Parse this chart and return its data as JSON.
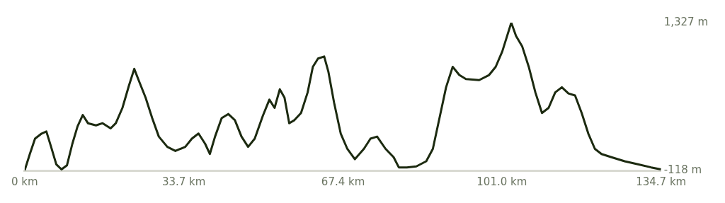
{
  "chart_data": {
    "type": "line",
    "grid": false,
    "legend": false,
    "marker": "none",
    "line_style": "solid",
    "xlim": [
      0,
      134.7
    ],
    "xticks": [
      {
        "value": 0,
        "label": "0 km"
      },
      {
        "value": 33.7,
        "label": "33.7 km"
      },
      {
        "value": 67.4,
        "label": "67.4 km"
      },
      {
        "value": 101.0,
        "label": "101.0 km"
      },
      {
        "value": 134.7,
        "label": "134.7 km"
      }
    ],
    "ylim": [
      -118,
      1327
    ],
    "yticks": [
      {
        "value": -118,
        "label": "-118 m"
      },
      {
        "value": 1327,
        "label": "1,327 m"
      }
    ],
    "x": [
      0,
      1.1,
      2.2,
      3.6,
      4.6,
      5.6,
      6.7,
      7.8,
      8.95,
      10.1,
      11.2,
      12.3,
      13.4,
      15.1,
      16.5,
      18.2,
      19.3,
      20.7,
      22.1,
      23.2,
      24.3,
      25.6,
      27.0,
      28.4,
      30.2,
      31.9,
      34.0,
      35.4,
      36.8,
      38.2,
      39.2,
      40.3,
      41.7,
      43.1,
      44.5,
      45.9,
      47.3,
      48.7,
      50.4,
      51.8,
      52.9,
      54.0,
      55.0,
      56.0,
      57.1,
      58.5,
      59.9,
      61.0,
      62.1,
      63.4,
      64.3,
      65.5,
      66.9,
      68.3,
      69.9,
      71.8,
      73.2,
      74.6,
      76.4,
      78.1,
      79.2,
      80.9,
      82.9,
      85.0,
      86.4,
      87.8,
      89.2,
      90.6,
      92.0,
      93.4,
      96.2,
      98.3,
      99.7,
      101.1,
      103.0,
      104.0,
      105.3,
      106.7,
      108.1,
      109.5,
      110.9,
      112.3,
      113.7,
      115.1,
      116.5,
      117.9,
      119.3,
      120.7,
      122.1,
      124.2,
      127.0,
      129.8,
      132.6,
      134.7
    ],
    "series": [
      {
        "color": "#1c2a10",
        "values": [
          -118,
          43,
          193,
          243,
          263,
          113,
          -58,
          -108,
          -68,
          143,
          313,
          424,
          344,
          323,
          344,
          293,
          344,
          494,
          715,
          875,
          745,
          594,
          394,
          213,
          113,
          73,
          113,
          193,
          243,
          143,
          43,
          213,
          394,
          434,
          374,
          213,
          113,
          193,
          414,
          574,
          494,
          675,
          594,
          344,
          374,
          444,
          645,
          895,
          976,
          996,
          845,
          544,
          243,
          93,
          -8,
          93,
          193,
          213,
          93,
          12,
          -88,
          -88,
          -78,
          -28,
          93,
          394,
          695,
          895,
          815,
          775,
          765,
          815,
          895,
          1046,
          1327,
          1197,
          1096,
          895,
          645,
          444,
          494,
          645,
          695,
          635,
          615,
          444,
          243,
          93,
          43,
          12,
          -28,
          -58,
          -88,
          -108
        ]
      }
    ]
  }
}
